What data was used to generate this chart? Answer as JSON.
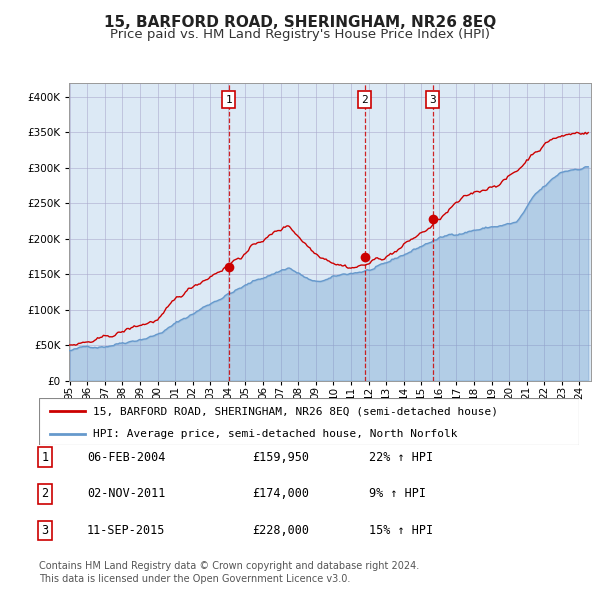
{
  "title": "15, BARFORD ROAD, SHERINGHAM, NR26 8EQ",
  "subtitle": "Price paid vs. HM Land Registry's House Price Index (HPI)",
  "background_color": "#dce9f5",
  "plot_bg_color": "#dce9f5",
  "fig_bg_color": "#ffffff",
  "hpi_line_color": "#6699cc",
  "price_line_color": "#cc0000",
  "marker_color": "#cc0000",
  "vline_color": "#cc0000",
  "grid_color": "#aaaacc",
  "ylabel_values": [
    0,
    50000,
    100000,
    150000,
    200000,
    250000,
    300000,
    350000,
    400000
  ],
  "ylim": [
    0,
    420000
  ],
  "xlim_start": 1995.0,
  "xlim_end": 2024.7,
  "sales": [
    {
      "date_num": 2004.09,
      "price": 159950,
      "label": "1"
    },
    {
      "date_num": 2011.84,
      "price": 174000,
      "label": "2"
    },
    {
      "date_num": 2015.7,
      "price": 228000,
      "label": "3"
    }
  ],
  "legend_entries": [
    "15, BARFORD ROAD, SHERINGHAM, NR26 8EQ (semi-detached house)",
    "HPI: Average price, semi-detached house, North Norfolk"
  ],
  "table_rows": [
    {
      "num": "1",
      "date": "06-FEB-2004",
      "price": "£159,950",
      "hpi": "22% ↑ HPI"
    },
    {
      "num": "2",
      "date": "02-NOV-2011",
      "price": "£174,000",
      "hpi": "9% ↑ HPI"
    },
    {
      "num": "3",
      "date": "11-SEP-2015",
      "price": "£228,000",
      "hpi": "15% ↑ HPI"
    }
  ],
  "footnote": "Contains HM Land Registry data © Crown copyright and database right 2024.\nThis data is licensed under the Open Government Licence v3.0.",
  "title_fontsize": 11,
  "subtitle_fontsize": 9.5,
  "tick_fontsize": 7.5,
  "legend_fontsize": 8,
  "table_fontsize": 8.5,
  "footnote_fontsize": 7
}
